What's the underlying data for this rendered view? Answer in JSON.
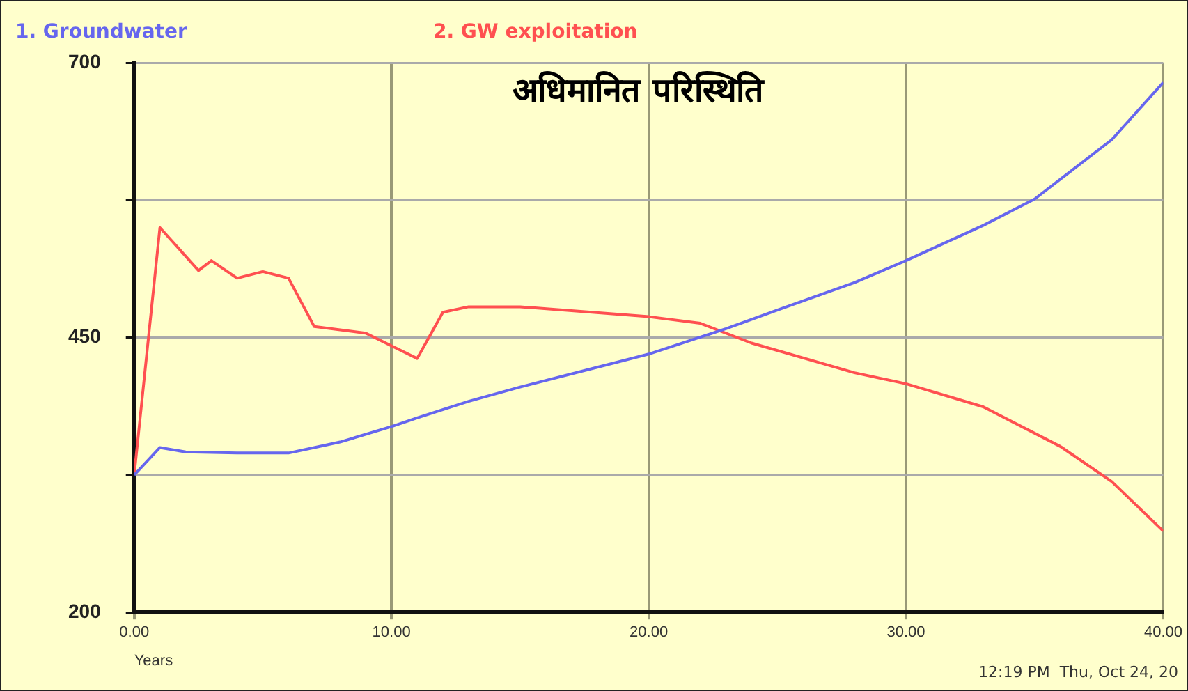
{
  "chart_data": {
    "type": "line",
    "title": "अधिमानित परिस्थिति",
    "xlabel": "Years",
    "xlim": [
      0,
      40
    ],
    "xticks": [
      {
        "value": 0,
        "label": "0.00"
      },
      {
        "value": 10,
        "label": "10.00"
      },
      {
        "value": 20,
        "label": "20.00"
      },
      {
        "value": 30,
        "label": "30.00"
      },
      {
        "value": 40,
        "label": "40.00"
      }
    ],
    "ylim": [
      200,
      700
    ],
    "yticks": [
      200,
      {
        "value": 325,
        "label": null
      },
      450,
      {
        "value": 575,
        "label": null
      },
      700
    ],
    "grid": true,
    "legend": "top",
    "marker": "none",
    "line_style": "solid",
    "series": [
      {
        "name": "1. Groundwater",
        "color": "#6666ee",
        "x": [
          0,
          1,
          2,
          4,
          6,
          7,
          8,
          10,
          11,
          13,
          15,
          18,
          20,
          23,
          25,
          28,
          30,
          33,
          35,
          38,
          40
        ],
        "values": [
          325,
          350,
          346,
          345,
          345,
          350,
          355,
          369,
          377,
          392,
          405,
          423,
          435,
          458,
          475,
          500,
          520,
          552,
          576,
          630,
          682
        ]
      },
      {
        "name": "2. GW exploitation",
        "color": "#ff5050",
        "x": [
          0,
          1,
          2.5,
          3,
          4,
          5,
          6,
          7,
          9,
          11,
          12,
          13,
          15,
          20,
          22,
          24,
          28,
          30,
          33,
          36,
          38,
          40
        ],
        "values": [
          325,
          550,
          511,
          520,
          504,
          510,
          504,
          460,
          454,
          431,
          473,
          478,
          478,
          469,
          463,
          445,
          418,
          408,
          387,
          351,
          319,
          274
        ]
      }
    ],
    "annotations": [
      "12:19 PM  Thu, Oct 24, 20"
    ]
  }
}
